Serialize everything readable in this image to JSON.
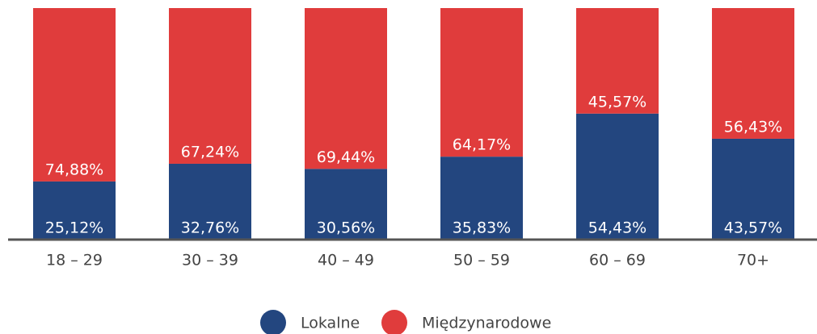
{
  "chart_data": {
    "type": "stacked_bar",
    "categories": [
      "18 – 29",
      "30 – 39",
      "40 – 49",
      "50 – 59",
      "60 – 69",
      "70+"
    ],
    "series": [
      {
        "name": "Lokalne",
        "color": "#23467f",
        "values": [
          25.12,
          32.76,
          30.56,
          35.83,
          54.43,
          43.57
        ],
        "value_labels": [
          "25,12%",
          "32,76%",
          "30,56%",
          "35,83%",
          "54,43%",
          "43,57%"
        ]
      },
      {
        "name": "Międzynarodowe",
        "color": "#e03c3c",
        "values": [
          74.88,
          67.24,
          69.44,
          64.17,
          45.57,
          56.43
        ],
        "value_labels": [
          "74,88%",
          "67,24%",
          "69,44%",
          "64,17%",
          "45,57%",
          "56,43%"
        ]
      }
    ],
    "ylim": [
      0,
      100
    ]
  }
}
